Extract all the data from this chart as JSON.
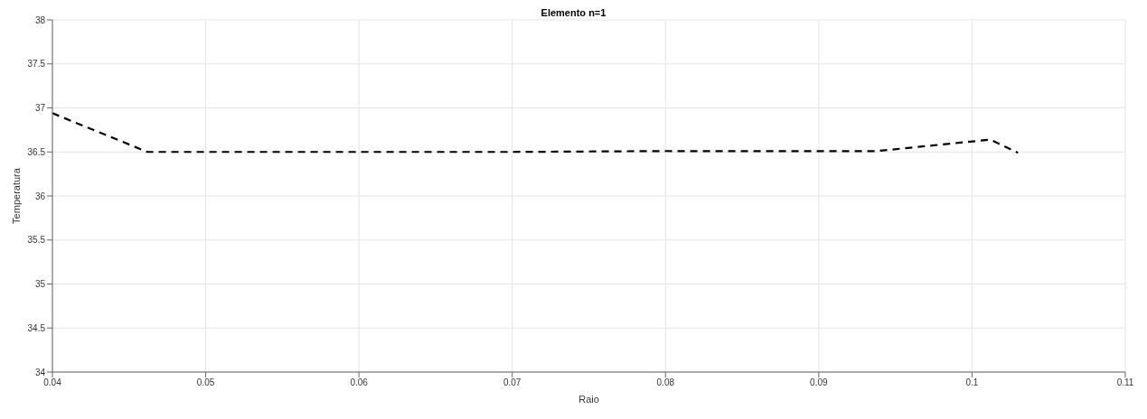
{
  "chart_data": {
    "type": "line",
    "title": "Elemento n=1",
    "xlabel": "Raio",
    "ylabel": "Temperatura",
    "series": [
      {
        "color": "#000000",
        "x": [
          0.04,
          0.0462,
          0.06,
          0.07,
          0.08,
          0.0938,
          0.1012,
          0.103
        ],
        "values": [
          36.94,
          36.5,
          36.5,
          36.5,
          36.51,
          36.51,
          36.64,
          36.49
        ]
      }
    ],
    "xlim": [
      0.04,
      0.11
    ],
    "xticks": [
      0.04,
      0.05,
      0.06,
      0.07,
      0.08,
      0.09,
      0.1,
      0.11
    ],
    "ylim": [
      34,
      38
    ],
    "yticks": [
      34,
      34.5,
      35,
      35.5,
      36,
      36.5,
      37,
      37.5,
      38
    ],
    "grid": true,
    "line_style": "dashed",
    "marker": "none"
  }
}
